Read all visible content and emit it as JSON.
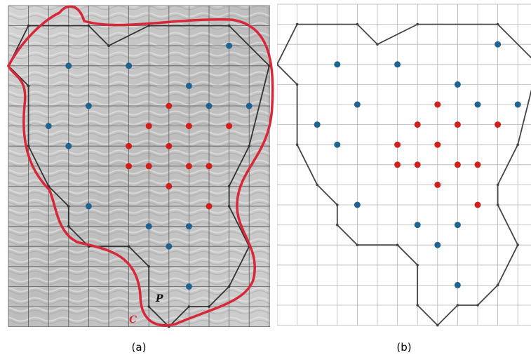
{
  "panels": [
    {
      "caption": "(a)",
      "labels": [
        "P",
        "C"
      ]
    },
    {
      "caption": "(b)"
    }
  ]
}
